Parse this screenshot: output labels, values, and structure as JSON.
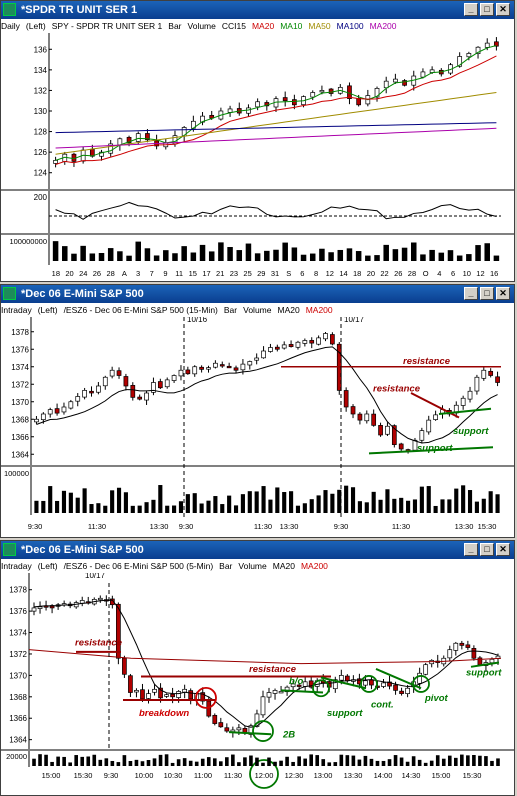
{
  "windows": [
    {
      "title": "*SPDR TR UNIT SER 1",
      "info": [
        "Daily",
        "(Left)",
        "SPY - SPDR TR UNIT SER 1",
        "Bar",
        "Volume",
        "CCI15",
        "MA20",
        "MA10",
        "MA50",
        "MA100",
        "MA200"
      ],
      "info_colors": [
        "#000",
        "#000",
        "#000",
        "#000",
        "#000",
        "#000",
        "#cc0000",
        "#008800",
        "#a08c00",
        "#000080",
        "#aa00aa"
      ],
      "price_ticks": [
        "136",
        "134",
        "132",
        "130",
        "128",
        "126",
        "124"
      ],
      "cci_tick": "200",
      "volume_tick": "100000000",
      "x_ticks": [
        "18",
        "20",
        "24",
        "26",
        "28",
        "A",
        "3",
        "7",
        "9",
        "11",
        "15",
        "17",
        "21",
        "23",
        "25",
        "29",
        "31",
        "S",
        "6",
        "8",
        "12",
        "14",
        "18",
        "20",
        "22",
        "26",
        "28",
        "O",
        "4",
        "6",
        "10",
        "12",
        "16"
      ]
    },
    {
      "title": "*Dec 06  E-Mini S&P 500",
      "info": [
        "Intraday",
        "(Left)",
        "/ESZ6 - Dec 06  E-Mini S&P 500  (15-Min)",
        "Bar",
        "Volume",
        "MA20",
        "MA200"
      ],
      "info_colors": [
        "#000",
        "#000",
        "#000",
        "#000",
        "#000",
        "#000",
        "#cc0000"
      ],
      "price_ticks": [
        "1378",
        "1376",
        "1374",
        "1372",
        "1370",
        "1368",
        "1366",
        "1364"
      ],
      "volume_tick": "100000",
      "x_ticks": [
        "9:30",
        "11:30",
        "13:30",
        "9:30",
        "11:30",
        "13:30",
        "9:30",
        "11:30",
        "13:30",
        "15:30"
      ],
      "session_labels": [
        "10/16",
        "10/17"
      ],
      "annotations": [
        "resistance",
        "resistance",
        "support",
        "support"
      ]
    },
    {
      "title": "*Dec 06  E-Mini S&P 500",
      "info": [
        "Intraday",
        "(Left)",
        "/ESZ6 - Dec 06  E-Mini S&P 500  (5-Min)",
        "Bar",
        "Volume",
        "MA20",
        "MA200"
      ],
      "info_colors": [
        "#000",
        "#000",
        "#000",
        "#000",
        "#000",
        "#000",
        "#cc0000"
      ],
      "price_ticks": [
        "1378",
        "1376",
        "1374",
        "1372",
        "1370",
        "1368",
        "1366",
        "1364"
      ],
      "volume_tick": "20000",
      "x_ticks": [
        "15:00",
        "15:30",
        "9:30",
        "10:00",
        "10:30",
        "11:00",
        "11:30",
        "12:00",
        "12:30",
        "13:00",
        "13:30",
        "14:00",
        "14:30",
        "15:00",
        "15:30"
      ],
      "session_labels": [
        "10/17"
      ],
      "annotations": [
        "resistance",
        "resistance",
        "breakdown",
        "2B",
        "b/o",
        "support",
        "cont.",
        "pivot",
        "support"
      ]
    }
  ],
  "chart_data": [
    {
      "type": "candlestick",
      "title": "*SPDR TR UNIT SER 1",
      "ylim": [
        123,
        137
      ],
      "closes": [
        125.2,
        125.8,
        125.1,
        126.2,
        125.6,
        126.0,
        126.8,
        127.3,
        126.9,
        127.8,
        127.2,
        126.6,
        126.9,
        127.6,
        128.4,
        129.0,
        129.5,
        129.3,
        130.0,
        130.2,
        129.8,
        130.3,
        130.9,
        130.5,
        131.2,
        131.0,
        130.6,
        131.4,
        131.8,
        132.0,
        131.7,
        132.3,
        131.2,
        130.6,
        131.5,
        132.2,
        132.9,
        133.1,
        132.5,
        133.4,
        133.8,
        134.0,
        133.6,
        134.5,
        135.3,
        135.6,
        136.2,
        136.6,
        136.3
      ]
    },
    {
      "type": "candlestick",
      "title": "*Dec 06  E-Mini S&P 500 (15-Min)",
      "ylim": [
        1363,
        1379
      ],
      "closes": [
        1368.0,
        1368.6,
        1369.1,
        1368.7,
        1369.4,
        1370.0,
        1370.6,
        1371.3,
        1371.0,
        1371.8,
        1372.8,
        1373.6,
        1373.0,
        1371.8,
        1370.5,
        1370.3,
        1371.0,
        1372.2,
        1371.6,
        1372.5,
        1373.0,
        1373.6,
        1373.2,
        1374.0,
        1373.7,
        1373.9,
        1374.4,
        1374.2,
        1374.0,
        1373.6,
        1374.3,
        1374.6,
        1375.0,
        1375.8,
        1376.2,
        1376.0,
        1376.5,
        1376.3,
        1376.8,
        1377.0,
        1376.7,
        1377.3,
        1377.8,
        1376.6,
        1371.3,
        1369.4,
        1368.6,
        1367.9,
        1368.6,
        1367.3,
        1366.2,
        1367.2,
        1365.1,
        1364.6,
        1364.4,
        1365.6,
        1366.7,
        1367.9,
        1368.5,
        1369.1,
        1368.6,
        1369.6,
        1370.4,
        1371.2,
        1372.8,
        1373.6,
        1373.0,
        1372.2
      ]
    },
    {
      "type": "candlestick",
      "title": "*Dec 06  E-Mini S&P 500 (5-Min)",
      "ylim": [
        1363.5,
        1379
      ],
      "closes": [
        1376.3,
        1376.4,
        1376.5,
        1376.3,
        1376.6,
        1376.7,
        1376.5,
        1376.8,
        1377.0,
        1376.8,
        1377.1,
        1377.2,
        1377.0,
        1376.6,
        1371.6,
        1370.1,
        1368.4,
        1368.6,
        1367.8,
        1368.3,
        1368.7,
        1367.9,
        1368.2,
        1368.0,
        1368.5,
        1368.7,
        1367.8,
        1368.3,
        1367.6,
        1366.2,
        1365.5,
        1365.2,
        1364.8,
        1364.9,
        1365.1,
        1364.6,
        1365.3,
        1366.4,
        1368.0,
        1368.4,
        1368.6,
        1368.5,
        1368.9,
        1369.2,
        1369.0,
        1369.4,
        1368.9,
        1369.5,
        1369.3,
        1368.9,
        1369.6,
        1370.0,
        1369.5,
        1369.6,
        1369.2,
        1369.5,
        1369.1,
        1368.9,
        1369.3,
        1369.0,
        1368.6,
        1368.3,
        1368.8,
        1369.4,
        1370.2,
        1371.0,
        1371.4,
        1371.2,
        1371.6,
        1372.4,
        1373.0,
        1372.8,
        1372.6,
        1371.6,
        1371.0,
        1371.2,
        1371.5,
        1371.8
      ]
    }
  ]
}
